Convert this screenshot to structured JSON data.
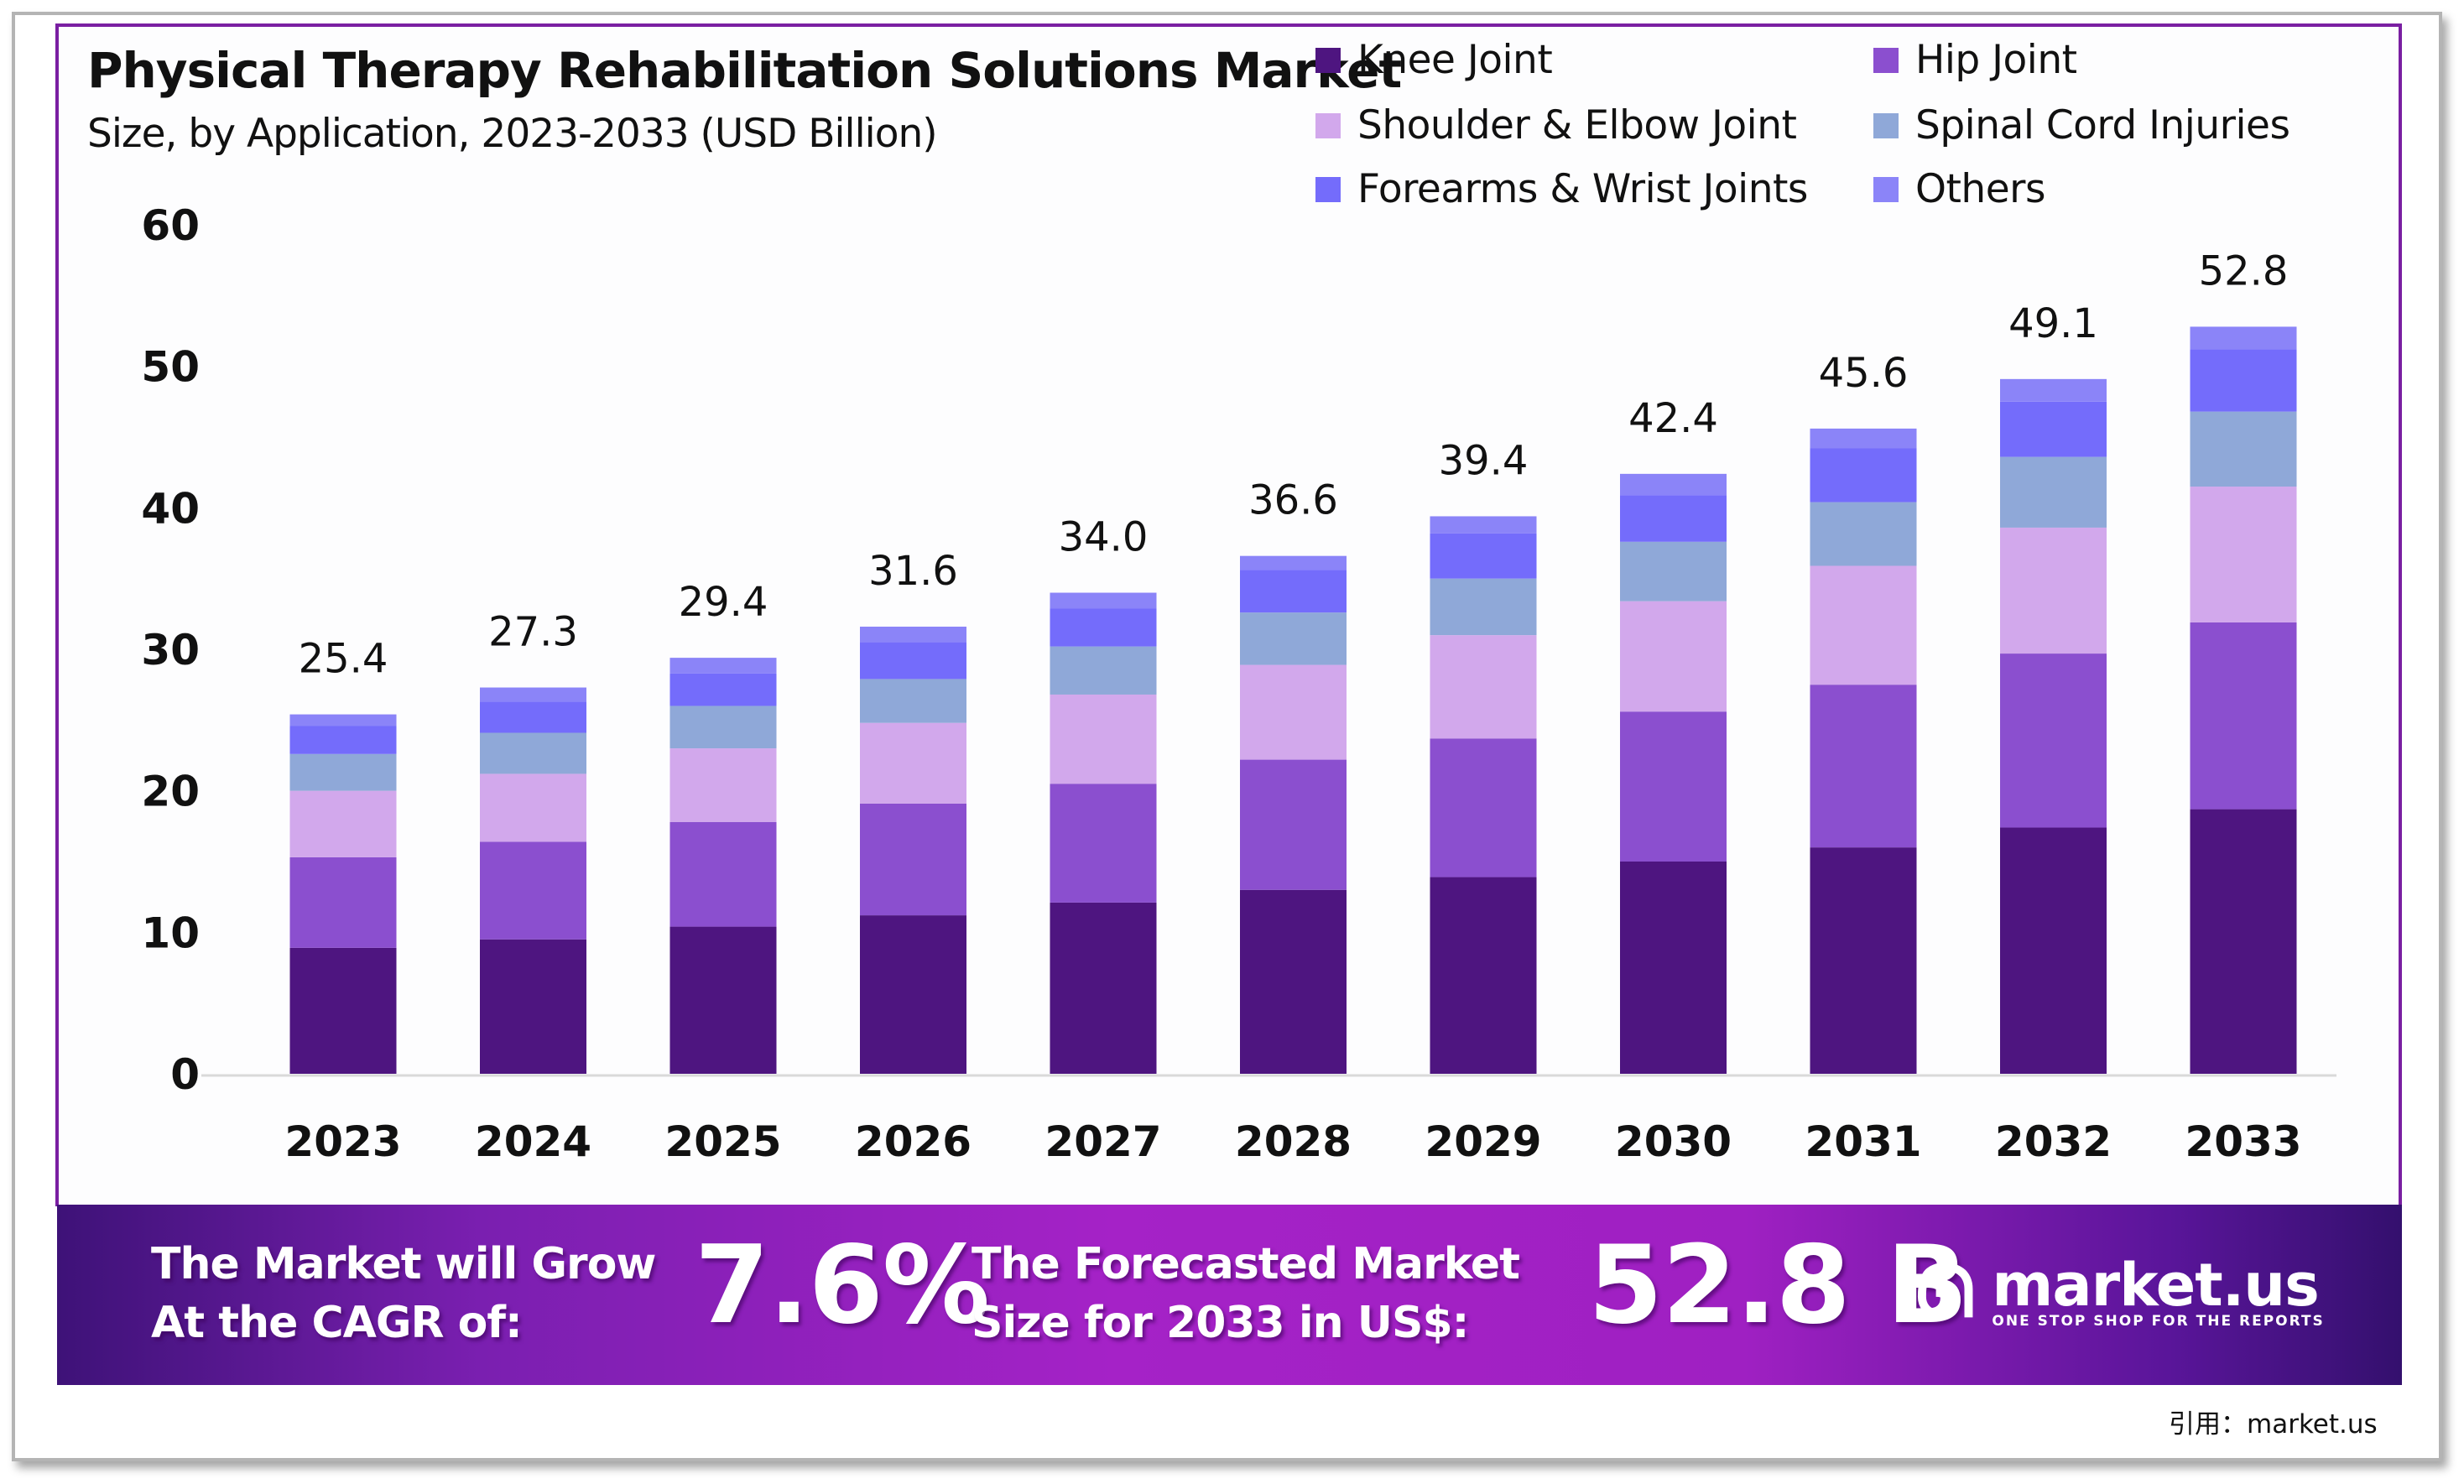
{
  "title": "Physical Therapy Rehabilitation Solutions Market",
  "subtitle": "Size, by Application, 2023-2033 (USD Billion)",
  "legend": [
    {
      "label": "Knee Joint",
      "color": "#4e1580"
    },
    {
      "label": "Hip Joint",
      "color": "#8b4fcf"
    },
    {
      "label": "Shoulder & Elbow Joint",
      "color": "#d2a8ec"
    },
    {
      "label": "Spinal Cord Injuries",
      "color": "#8fa8d8"
    },
    {
      "label": "Forearms & Wrist Joints",
      "color": "#746cfb"
    },
    {
      "label": "Others",
      "color": "#8b84f8"
    }
  ],
  "banner": {
    "cagr_text_line1": "The Market will Grow",
    "cagr_text_line2": "At the CAGR of:",
    "cagr_value": "7.6%",
    "forecast_text_line1": "The Forecasted Market",
    "forecast_text_line2": "Size for 2033 in US$:",
    "forecast_value": "52.8 B",
    "logo_name": "market.us",
    "logo_tagline": "ONE STOP SHOP FOR THE REPORTS"
  },
  "citation": "引用：market.us",
  "chart_data": {
    "type": "bar",
    "stacked": true,
    "title": "Physical Therapy Rehabilitation Solutions Market",
    "subtitle": "Size, by Application, 2023-2033 (USD Billion)",
    "xlabel": "",
    "ylabel": "",
    "ylim": [
      0,
      60
    ],
    "yticks": [
      0,
      10,
      20,
      30,
      40,
      50,
      60
    ],
    "grid": false,
    "legend_position": "top-right",
    "categories": [
      "2023",
      "2024",
      "2025",
      "2026",
      "2027",
      "2028",
      "2029",
      "2030",
      "2031",
      "2032",
      "2033"
    ],
    "totals": [
      25.4,
      27.3,
      29.4,
      31.6,
      34.0,
      36.6,
      39.4,
      42.4,
      45.6,
      49.1,
      52.8
    ],
    "total_labels": [
      "25.4",
      "27.3",
      "29.4",
      "31.6",
      "34.0",
      "36.6",
      "39.4",
      "42.4",
      "45.6",
      "49.1",
      "52.8"
    ],
    "series": [
      {
        "name": "Knee Joint",
        "color": "#4e1580",
        "values": [
          8.9,
          9.5,
          10.4,
          11.2,
          12.1,
          13.0,
          13.9,
          15.0,
          16.0,
          17.4,
          18.7
        ]
      },
      {
        "name": "Hip Joint",
        "color": "#8b4fcf",
        "values": [
          6.4,
          6.9,
          7.4,
          7.9,
          8.4,
          9.2,
          9.8,
          10.6,
          11.5,
          12.3,
          13.2
        ]
      },
      {
        "name": "Shoulder & Elbow Joint",
        "color": "#d2a8ec",
        "values": [
          4.7,
          4.8,
          5.2,
          5.7,
          6.3,
          6.7,
          7.3,
          7.8,
          8.4,
          8.9,
          9.6
        ]
      },
      {
        "name": "Spinal Cord Injuries",
        "color": "#8fa8d8",
        "values": [
          2.6,
          2.9,
          3.0,
          3.1,
          3.4,
          3.7,
          4.0,
          4.2,
          4.5,
          5.0,
          5.3
        ]
      },
      {
        "name": "Forearms & Wrist Joints",
        "color": "#746cfb",
        "values": [
          2.0,
          2.2,
          2.3,
          2.6,
          2.7,
          3.0,
          3.2,
          3.3,
          3.8,
          3.9,
          4.4
        ]
      },
      {
        "name": "Others",
        "color": "#8b84f8",
        "values": [
          0.8,
          1.0,
          1.1,
          1.1,
          1.1,
          1.0,
          1.2,
          1.5,
          1.4,
          1.6,
          1.6
        ]
      }
    ]
  }
}
